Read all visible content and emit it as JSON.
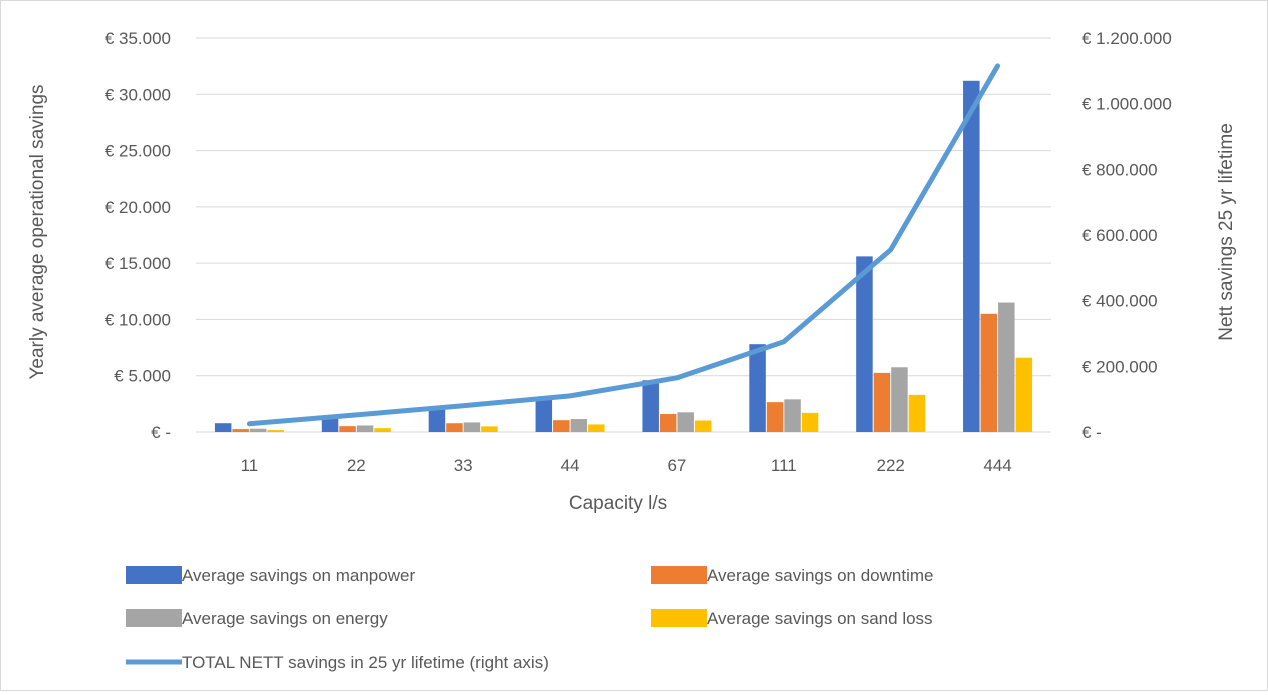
{
  "chart_data": {
    "type": "bar",
    "xlabel": "Capacity l/s",
    "ylabel": "Yearly average operational savings",
    "y2label": "Nett savings 25 yr lifetime",
    "categories": [
      "11",
      "22",
      "33",
      "44",
      "67",
      "111",
      "222",
      "444"
    ],
    "ylim": [
      0,
      35000
    ],
    "y2lim": [
      0,
      1200000
    ],
    "yticks": [
      "€ -",
      "€ 5.000",
      "€ 10.000",
      "€ 15.000",
      "€ 20.000",
      "€ 25.000",
      "€ 30.000",
      "€ 35.000"
    ],
    "y2ticks": [
      "€ -",
      "€ 200.000",
      "€ 400.000",
      "€ 600.000",
      "€ 800.000",
      "€ 1.000.000",
      "€ 1.200.000"
    ],
    "grid": true,
    "legend_position": "bottom",
    "series": [
      {
        "name": "Average savings on manpower",
        "type": "bar",
        "axis": "left",
        "color": "#4472C4",
        "values": [
          780,
          1400,
          2150,
          2900,
          4600,
          7800,
          15600,
          31200
        ]
      },
      {
        "name": "Average savings on downtime",
        "type": "bar",
        "axis": "left",
        "color": "#ED7D31",
        "values": [
          260,
          520,
          780,
          1050,
          1600,
          2650,
          5250,
          10500
        ]
      },
      {
        "name": "Average savings on energy",
        "type": "bar",
        "axis": "left",
        "color": "#A5A5A5",
        "values": [
          290,
          580,
          850,
          1150,
          1750,
          2900,
          5750,
          11500
        ]
      },
      {
        "name": "Average savings on sand loss",
        "type": "bar",
        "axis": "left",
        "color": "#FFC000",
        "values": [
          170,
          340,
          500,
          670,
          1020,
          1700,
          3300,
          6600
        ]
      },
      {
        "name": "TOTAL NETT savings in 25 yr lifetime (right axis)",
        "type": "line",
        "axis": "right",
        "color": "#5B9BD5",
        "values": [
          25000,
          52000,
          80000,
          110000,
          165000,
          275000,
          555000,
          1115000
        ]
      }
    ]
  }
}
